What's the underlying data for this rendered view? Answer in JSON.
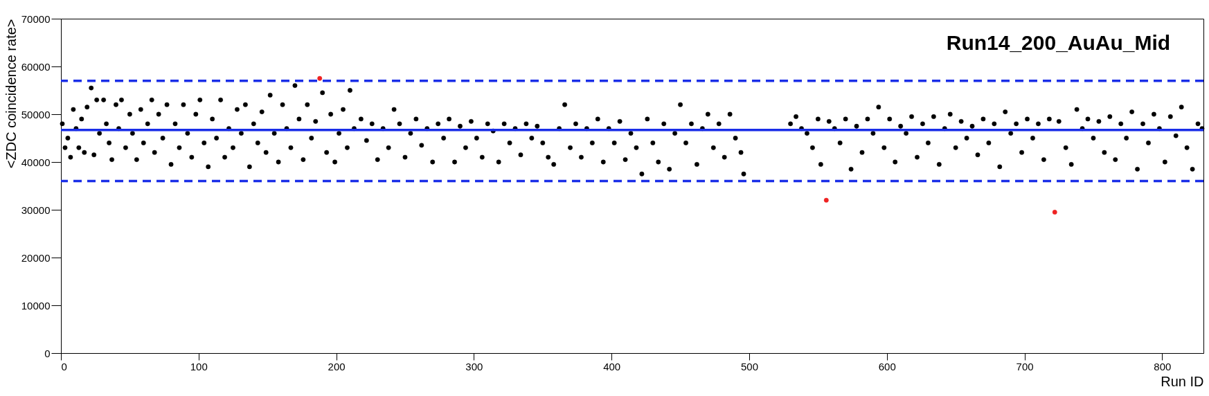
{
  "chart_data": {
    "type": "scatter",
    "title": "Run14_200_AuAu_Mid",
    "xlabel": "Run ID",
    "ylabel": "<ZDC coincidence rate>",
    "xlim": [
      0,
      830
    ],
    "ylim": [
      0,
      70000
    ],
    "xticks": [
      0,
      100,
      200,
      300,
      400,
      500,
      600,
      700,
      800
    ],
    "yticks": [
      0,
      10000,
      20000,
      30000,
      40000,
      50000,
      60000,
      70000
    ],
    "marker": "circle",
    "grid": false,
    "series": [
      {
        "color": "#000000",
        "x": [
          1,
          3,
          5,
          7,
          9,
          11,
          13,
          15,
          17,
          19,
          22,
          24,
          26,
          28,
          31,
          33,
          35,
          37,
          40,
          42,
          44,
          47,
          50,
          52,
          55,
          58,
          60,
          63,
          66,
          68,
          71,
          74,
          77,
          80,
          83,
          86,
          89,
          92,
          95,
          98,
          101,
          104,
          107,
          110,
          113,
          116,
          119,
          122,
          125,
          128,
          131,
          134,
          137,
          140,
          143,
          146,
          149,
          152,
          155,
          158,
          161,
          164,
          167,
          170,
          173,
          176,
          179,
          182,
          185,
          190,
          193,
          196,
          199,
          202,
          205,
          208,
          210,
          213,
          218,
          222,
          226,
          230,
          234,
          238,
          242,
          246,
          250,
          254,
          258,
          262,
          266,
          270,
          274,
          278,
          282,
          286,
          290,
          294,
          298,
          302,
          306,
          310,
          314,
          318,
          322,
          326,
          330,
          334,
          338,
          342,
          346,
          350,
          354,
          358,
          362,
          366,
          370,
          374,
          378,
          382,
          386,
          390,
          394,
          398,
          402,
          406,
          410,
          414,
          418,
          422,
          426,
          430,
          434,
          438,
          442,
          446,
          450,
          454,
          458,
          462,
          466,
          470,
          474,
          478,
          482,
          486,
          490,
          494,
          496,
          530,
          534,
          538,
          542,
          546,
          550,
          552,
          558,
          562,
          566,
          570,
          574,
          578,
          582,
          586,
          590,
          594,
          598,
          602,
          606,
          610,
          614,
          618,
          622,
          626,
          630,
          634,
          638,
          642,
          646,
          650,
          654,
          658,
          662,
          666,
          670,
          674,
          678,
          682,
          686,
          690,
          694,
          698,
          702,
          706,
          710,
          714,
          718,
          725,
          730,
          734,
          738,
          742,
          746,
          750,
          754,
          758,
          762,
          766,
          770,
          774,
          778,
          782,
          786,
          790,
          794,
          798,
          802,
          806,
          810,
          814,
          818,
          822,
          826,
          829
        ],
        "values": [
          48000,
          43000,
          45000,
          41000,
          51000,
          47000,
          43000,
          49000,
          42000,
          51500,
          55500,
          41500,
          53000,
          46000,
          53000,
          48000,
          44000,
          40500,
          52000,
          47000,
          53000,
          43000,
          50000,
          46000,
          40500,
          51000,
          44000,
          48000,
          53000,
          42000,
          50000,
          45000,
          52000,
          39500,
          48000,
          43000,
          52000,
          46000,
          41000,
          50000,
          53000,
          44000,
          39000,
          49000,
          45000,
          53000,
          41000,
          47000,
          43000,
          51000,
          46000,
          52000,
          39000,
          48000,
          44000,
          50500,
          42000,
          54000,
          46000,
          40000,
          52000,
          47000,
          43000,
          56000,
          49000,
          40500,
          52000,
          45000,
          48500,
          54500,
          42000,
          50000,
          40000,
          46000,
          51000,
          43000,
          55000,
          47000,
          49000,
          44500,
          48000,
          40500,
          47000,
          43000,
          51000,
          48000,
          41000,
          46000,
          49000,
          43500,
          47000,
          40000,
          48000,
          45000,
          49000,
          40000,
          47500,
          43000,
          48500,
          45000,
          41000,
          48000,
          46500,
          40000,
          48000,
          44000,
          47000,
          41500,
          48000,
          45000,
          47500,
          44000,
          41000,
          39500,
          47000,
          52000,
          43000,
          48000,
          41000,
          47000,
          44000,
          49000,
          40000,
          47000,
          44000,
          48500,
          40500,
          46000,
          43000,
          37500,
          49000,
          44000,
          40000,
          48000,
          38500,
          46000,
          52000,
          44000,
          48000,
          39500,
          47000,
          50000,
          43000,
          48000,
          41000,
          50000,
          45000,
          42000,
          37500,
          48000,
          49500,
          47000,
          46000,
          43000,
          49000,
          39500,
          48500,
          47000,
          44000,
          49000,
          38500,
          47500,
          42000,
          49000,
          46000,
          51500,
          43000,
          49000,
          40000,
          47500,
          46000,
          49500,
          41000,
          48000,
          44000,
          49500,
          39500,
          47000,
          50000,
          43000,
          48500,
          45000,
          47500,
          41500,
          49000,
          44000,
          48000,
          39000,
          50500,
          46000,
          48000,
          42000,
          49000,
          45000,
          48000,
          40500,
          49000,
          48500,
          43000,
          39500,
          51000,
          47000,
          49000,
          45000,
          48500,
          42000,
          49500,
          40500,
          48000,
          45000,
          50500,
          38500,
          48000,
          44000,
          50000,
          47000,
          40000,
          49500,
          45500,
          51500,
          43000,
          38500,
          48000,
          47000
        ]
      },
      {
        "color": "#ee2222",
        "x": [
          188,
          556,
          722
        ],
        "values": [
          57500,
          32000,
          29500
        ]
      }
    ],
    "ref_lines": [
      {
        "axis": "y",
        "value": 46700,
        "color": "#1a2ee8",
        "line_style": "solid"
      },
      {
        "axis": "y",
        "value": 57000,
        "color": "#1a2ee8",
        "line_style": "dashed"
      },
      {
        "axis": "y",
        "value": 36000,
        "color": "#1a2ee8",
        "line_style": "dashed"
      }
    ]
  }
}
